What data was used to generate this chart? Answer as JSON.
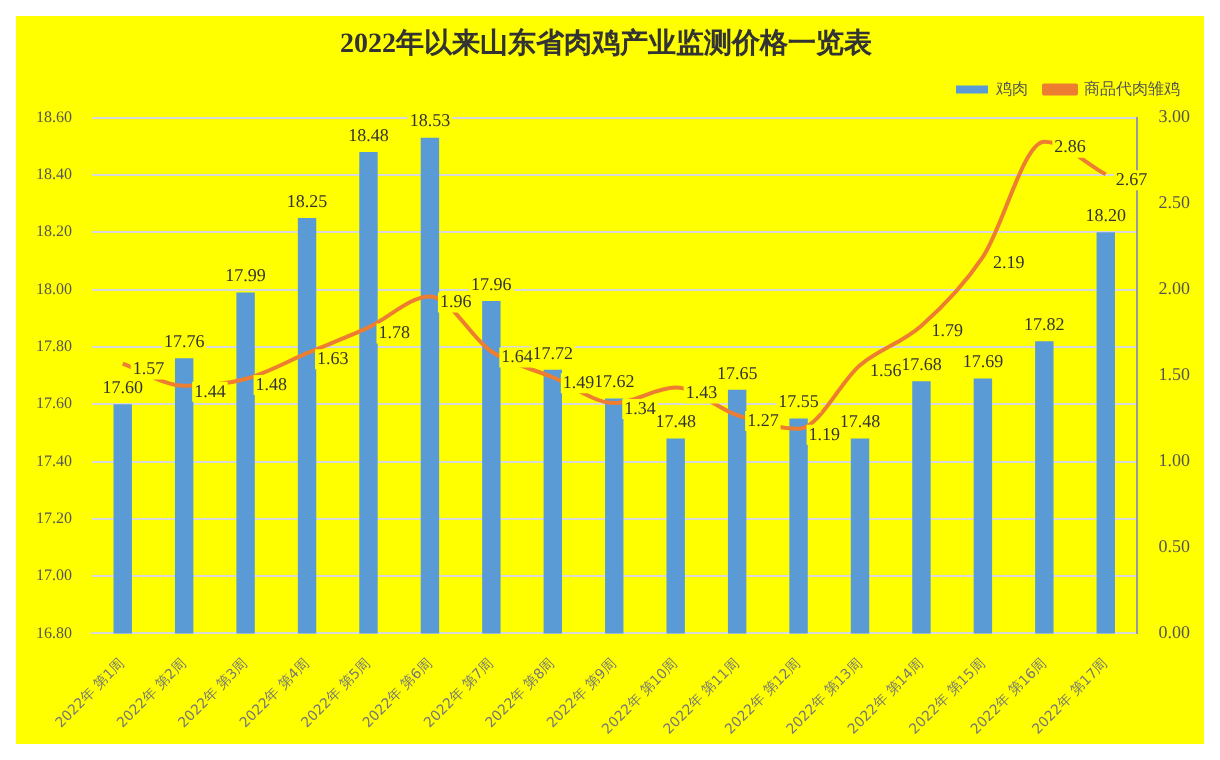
{
  "chart_data": {
    "type": "bar",
    "title": "2022年以来山东省肉鸡产业监测价格一览表",
    "categories": [
      "2022年 第1周",
      "2022年 第2周",
      "2022年 第3周",
      "2022年 第4周",
      "2022年 第5周",
      "2022年 第6周",
      "2022年 第7周",
      "2022年 第8周",
      "2022年 第9周",
      "2022年 第10周",
      "2022年 第11周",
      "2022年 第12周",
      "2022年 第13周",
      "2022年 第14周",
      "2022年 第15周",
      "2022年 第16周",
      "2022年 第17周"
    ],
    "series": [
      {
        "name": "鸡肉",
        "color": "#5b9bd5",
        "values": [
          17.6,
          17.76,
          17.99,
          18.25,
          18.48,
          18.53,
          17.96,
          17.72,
          17.62,
          17.48,
          17.65,
          17.55,
          17.48,
          17.68,
          17.69,
          17.82,
          18.2
        ],
        "value_labels": [
          "17.60",
          "17.76",
          "17.99",
          "18.25",
          "18.48",
          "18.53",
          "17.96",
          "17.72",
          "17.62",
          "17.48",
          "17.65",
          "17.55",
          "17.48",
          "17.68",
          "17.69",
          "17.82",
          "18.20"
        ]
      },
      {
        "name": "商品代肉雏鸡",
        "type": "line",
        "axis": "y2",
        "color": "#ed7d31",
        "values": [
          1.57,
          1.44,
          1.48,
          1.63,
          1.78,
          1.96,
          1.64,
          1.49,
          1.34,
          1.43,
          1.27,
          1.19,
          1.56,
          1.79,
          2.19,
          2.86,
          2.67
        ],
        "value_labels": [
          "1.57",
          "1.44",
          "1.48",
          "1.63",
          "1.78",
          "1.96",
          "1.64",
          "1.49",
          "1.34",
          "1.43",
          "1.27",
          "1.19",
          "1.56",
          "1.79",
          "2.19",
          "2.86",
          "2.67"
        ]
      }
    ],
    "ylim": [
      16.8,
      18.6
    ],
    "yticks": [
      {
        "value": 16.8,
        "label": "16.80"
      },
      {
        "value": 17,
        "label": "17.00"
      },
      {
        "value": 17.2,
        "label": "17.20"
      },
      {
        "value": 17.4,
        "label": "17.40"
      },
      {
        "value": 17.6,
        "label": "17.60"
      },
      {
        "value": 17.8,
        "label": "17.80"
      },
      {
        "value": 18,
        "label": "18.00"
      },
      {
        "value": 18.2,
        "label": "18.20"
      },
      {
        "value": 18.4,
        "label": "18.40"
      },
      {
        "value": 18.6,
        "label": "18.60"
      }
    ],
    "y2lim": [
      0,
      3
    ],
    "y2ticks": [
      {
        "value": 0,
        "label": "0.00"
      },
      {
        "value": 0.5,
        "label": "0.50"
      },
      {
        "value": 1,
        "label": "1.00"
      },
      {
        "value": 1.5,
        "label": "1.50"
      },
      {
        "value": 2,
        "label": "2.00"
      },
      {
        "value": 2.5,
        "label": "2.50"
      },
      {
        "value": 3,
        "label": "3.00"
      }
    ],
    "grid": "y",
    "legend": "top right",
    "marker": "none"
  }
}
